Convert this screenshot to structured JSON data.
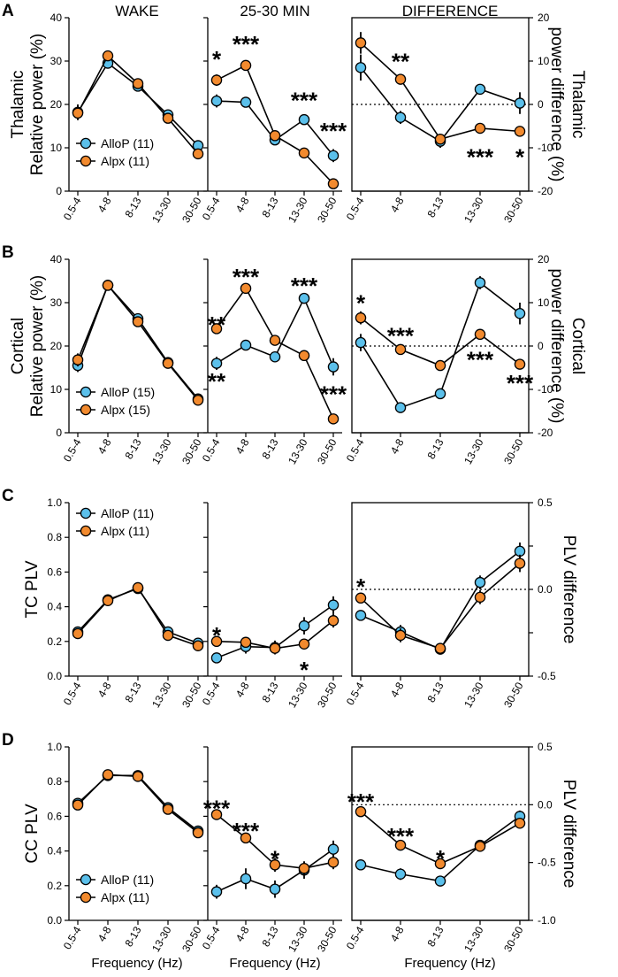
{
  "column_titles": [
    "WAKE",
    "25-30 MIN",
    "DIFFERENCE"
  ],
  "xlabel": "Frequency (Hz)",
  "colors": {
    "allop": "#5bc0eb",
    "alpx": "#f28a2e",
    "axis": "#000000"
  },
  "chart_data": [
    {
      "row": "A",
      "panel_letter": "A",
      "type": "line",
      "ylabel_left": [
        "Thalamic",
        "Relative power (%)"
      ],
      "ylabel_right": [
        "Thalamic",
        "power difference (%)"
      ],
      "legend": [
        "AlloP (11)",
        "Alpx (11)"
      ],
      "categories": [
        "0.5-4",
        "4-8",
        "8-13",
        "13-30",
        "30-50"
      ],
      "panels": [
        {
          "col": "wake",
          "ylim": [
            0,
            40
          ],
          "yticks": [
            "0",
            "10",
            "20",
            "30",
            "40"
          ],
          "series": [
            {
              "key": "allop",
              "values": [
                18.2,
                29.5,
                24.2,
                17.6,
                10.5
              ],
              "err": [
                1.8,
                1.2,
                1.0,
                1.0,
                0.8
              ]
            },
            {
              "key": "alpx",
              "values": [
                18.0,
                31.2,
                24.8,
                16.8,
                8.6
              ],
              "err": [
                1.6,
                1.0,
                1.0,
                1.0,
                0.8
              ]
            }
          ],
          "stars": []
        },
        {
          "col": "post",
          "ylim": [
            0,
            40
          ],
          "series": [
            {
              "key": "allop",
              "values": [
                20.8,
                20.5,
                11.8,
                16.5,
                8.2
              ],
              "err": [
                1.5,
                1.0,
                0.8,
                0.8,
                1.5
              ]
            },
            {
              "key": "alpx",
              "values": [
                25.6,
                29.0,
                12.8,
                8.8,
                1.7
              ],
              "err": [
                1.3,
                1.0,
                0.8,
                0.6,
                0.4
              ]
            }
          ],
          "stars": [
            {
              "i": 0,
              "y": 31,
              "t": "*"
            },
            {
              "i": 1,
              "y": 34.5,
              "t": "***"
            },
            {
              "i": 3,
              "y": 21.5,
              "t": "***"
            },
            {
              "i": 4,
              "y": 14.5,
              "t": "***"
            }
          ]
        },
        {
          "col": "diff",
          "ylim": [
            -20,
            20
          ],
          "yticks": [
            "-20",
            "-10",
            "0",
            "10",
            "20"
          ],
          "series": [
            {
              "key": "allop",
              "values": [
                8.5,
                -3.0,
                -8.5,
                3.5,
                0.3
              ],
              "err": [
                3.0,
                1.5,
                1.5,
                1.0,
                2.5
              ]
            },
            {
              "key": "alpx",
              "values": [
                14.2,
                5.8,
                -8.0,
                -5.5,
                -6.2
              ],
              "err": [
                2.5,
                1.0,
                1.2,
                1.0,
                1.0
              ]
            }
          ],
          "stars": [
            {
              "i": 1,
              "y": 10.5,
              "t": "**"
            },
            {
              "i": 3,
              "y": -11.5,
              "t": "***"
            },
            {
              "i": 4,
              "y": -11.5,
              "t": "*"
            }
          ]
        }
      ]
    },
    {
      "row": "B",
      "panel_letter": "B",
      "type": "line",
      "ylabel_left": [
        "Cortical",
        "Relative power (%)"
      ],
      "ylabel_right": [
        "Cortical",
        "power difference (%)"
      ],
      "legend": [
        "AlloP (15)",
        "Alpx (15)"
      ],
      "categories": [
        "0.5-4",
        "4-8",
        "8-13",
        "13-30",
        "30-50"
      ],
      "panels": [
        {
          "col": "wake",
          "ylim": [
            0,
            40
          ],
          "yticks": [
            "0",
            "10",
            "20",
            "30",
            "40"
          ],
          "series": [
            {
              "key": "allop",
              "values": [
                15.5,
                34.0,
                26.3,
                16.2,
                7.8
              ],
              "err": [
                1.5,
                0.8,
                0.8,
                0.8,
                0.6
              ]
            },
            {
              "key": "alpx",
              "values": [
                16.8,
                34.0,
                25.6,
                16.0,
                7.5
              ],
              "err": [
                1.5,
                0.8,
                0.8,
                0.8,
                0.6
              ]
            }
          ],
          "stars": []
        },
        {
          "col": "post",
          "ylim": [
            0,
            40
          ],
          "series": [
            {
              "key": "allop",
              "values": [
                16.0,
                20.2,
                17.5,
                31.0,
                15.2
              ],
              "err": [
                1.5,
                1.0,
                1.0,
                1.2,
                2.0
              ]
            },
            {
              "key": "alpx",
              "values": [
                24.0,
                33.3,
                21.3,
                17.8,
                3.2
              ],
              "err": [
                1.0,
                1.0,
                1.0,
                1.0,
                0.5
              ]
            }
          ],
          "stars": [
            {
              "i": 0,
              "y": 25.5,
              "t": "**",
              "below": 12.5
            },
            {
              "i": 1,
              "y": 36.5,
              "t": "***"
            },
            {
              "i": 3,
              "y": 34.5,
              "t": "***"
            },
            {
              "i": 4,
              "y": 9.5,
              "t": "***"
            }
          ]
        },
        {
          "col": "diff",
          "ylim": [
            -20,
            20
          ],
          "yticks": [
            "-20",
            "-10",
            "0",
            "10",
            "20"
          ],
          "series": [
            {
              "key": "allop",
              "values": [
                0.8,
                -14.2,
                -11.0,
                14.6,
                7.5
              ],
              "err": [
                2.0,
                1.0,
                1.0,
                1.5,
                2.5
              ]
            },
            {
              "key": "alpx",
              "values": [
                6.5,
                -0.8,
                -4.5,
                2.7,
                -4.2
              ],
              "err": [
                1.5,
                1.0,
                1.0,
                1.0,
                1.0
              ]
            }
          ],
          "stars": [
            {
              "i": 0,
              "y": 10.5,
              "t": "*"
            },
            {
              "i": 1,
              "y": 3.0,
              "t": "***"
            },
            {
              "i": 3,
              "y": -2.5,
              "t": "***"
            },
            {
              "i": 4,
              "y": -8.0,
              "t": "***"
            }
          ]
        }
      ]
    },
    {
      "row": "C",
      "panel_letter": "C",
      "type": "line",
      "ylabel_left": [
        "TC PLV"
      ],
      "ylabel_right": [
        "PLV difference"
      ],
      "legend": [
        "AlloP (11)",
        "Alpx (11)"
      ],
      "categories": [
        "0.5-4",
        "4-8",
        "8-13",
        "13-30",
        "30-50"
      ],
      "panels": [
        {
          "col": "wake",
          "ylim": [
            0,
            1
          ],
          "yticks": [
            "0.0",
            "0.2",
            "0.4",
            "0.6",
            "0.8",
            "1.0"
          ],
          "series": [
            {
              "key": "allop",
              "values": [
                0.255,
                0.44,
                0.505,
                0.255,
                0.19
              ],
              "err": [
                0.02,
                0.03,
                0.03,
                0.02,
                0.03
              ]
            },
            {
              "key": "alpx",
              "values": [
                0.245,
                0.435,
                0.51,
                0.235,
                0.175
              ],
              "err": [
                0.02,
                0.03,
                0.03,
                0.02,
                0.03
              ]
            }
          ],
          "stars": []
        },
        {
          "col": "post",
          "ylim": [
            0,
            1
          ],
          "series": [
            {
              "key": "allop",
              "values": [
                0.105,
                0.17,
                0.165,
                0.29,
                0.41
              ],
              "err": [
                0.02,
                0.04,
                0.04,
                0.05,
                0.05
              ]
            },
            {
              "key": "alpx",
              "values": [
                0.2,
                0.195,
                0.16,
                0.185,
                0.32
              ],
              "err": [
                0.02,
                0.03,
                0.03,
                0.03,
                0.04
              ]
            }
          ],
          "stars": [
            {
              "i": 0,
              "y": 0.25,
              "t": "*"
            },
            {
              "i": 3,
              "y": 0.05,
              "t": "*"
            }
          ]
        },
        {
          "col": "diff",
          "ylim": [
            -0.5,
            0.5
          ],
          "yticks": [
            "-0.5",
            "",
            "0.0",
            "",
            "0.5"
          ],
          "series": [
            {
              "key": "allop",
              "values": [
                -0.15,
                -0.245,
                -0.345,
                0.04,
                0.22
              ],
              "err": [
                0.02,
                0.04,
                0.03,
                0.04,
                0.05
              ]
            },
            {
              "key": "alpx",
              "values": [
                -0.05,
                -0.265,
                -0.34,
                -0.045,
                0.15
              ],
              "err": [
                0.02,
                0.04,
                0.03,
                0.04,
                0.05
              ]
            }
          ],
          "stars": [
            {
              "i": 0,
              "y": 0.03,
              "t": "*"
            }
          ]
        }
      ]
    },
    {
      "row": "D",
      "panel_letter": "D",
      "type": "line",
      "ylabel_left": [
        "CC PLV"
      ],
      "ylabel_right": [
        "PLV difference"
      ],
      "legend": [
        "AlloP (11)",
        "Alpx (11)"
      ],
      "categories": [
        "0.5-4",
        "4-8",
        "8-13",
        "13-30",
        "30-50"
      ],
      "panels": [
        {
          "col": "wake",
          "ylim": [
            0,
            1
          ],
          "yticks": [
            "0.0",
            "0.2",
            "0.4",
            "0.6",
            "0.8",
            "1.0"
          ],
          "series": [
            {
              "key": "allop",
              "values": [
                0.675,
                0.835,
                0.835,
                0.65,
                0.515
              ],
              "err": [
                0.02,
                0.02,
                0.02,
                0.02,
                0.02
              ]
            },
            {
              "key": "alpx",
              "values": [
                0.665,
                0.84,
                0.83,
                0.64,
                0.505
              ],
              "err": [
                0.02,
                0.02,
                0.02,
                0.02,
                0.02
              ]
            }
          ],
          "stars": []
        },
        {
          "col": "post",
          "ylim": [
            0,
            1
          ],
          "series": [
            {
              "key": "allop",
              "values": [
                0.165,
                0.24,
                0.18,
                0.29,
                0.41
              ],
              "err": [
                0.04,
                0.06,
                0.05,
                0.05,
                0.05
              ]
            },
            {
              "key": "alpx",
              "values": [
                0.61,
                0.475,
                0.32,
                0.3,
                0.335
              ],
              "err": [
                0.02,
                0.03,
                0.04,
                0.04,
                0.04
              ]
            }
          ],
          "stars": [
            {
              "i": 0,
              "y": 0.66,
              "t": "***"
            },
            {
              "i": 1,
              "y": 0.53,
              "t": "***"
            },
            {
              "i": 2,
              "y": 0.37,
              "t": "*"
            }
          ]
        },
        {
          "col": "diff",
          "ylim": [
            -1.0,
            0.5
          ],
          "yticks": [
            "-1.0",
            "-0.5",
            "0.0",
            "0.5"
          ],
          "series": [
            {
              "key": "allop",
              "values": [
                -0.52,
                -0.6,
                -0.66,
                -0.35,
                -0.1
              ],
              "err": [
                0.03,
                0.05,
                0.04,
                0.04,
                0.05
              ]
            },
            {
              "key": "alpx",
              "values": [
                -0.06,
                -0.35,
                -0.51,
                -0.36,
                -0.16
              ],
              "err": [
                0.02,
                0.03,
                0.03,
                0.03,
                0.04
              ]
            }
          ],
          "stars": [
            {
              "i": 0,
              "y": 0.05,
              "t": "***"
            },
            {
              "i": 1,
              "y": -0.25,
              "t": "***"
            },
            {
              "i": 2,
              "y": -0.44,
              "t": "*"
            }
          ]
        }
      ]
    }
  ]
}
